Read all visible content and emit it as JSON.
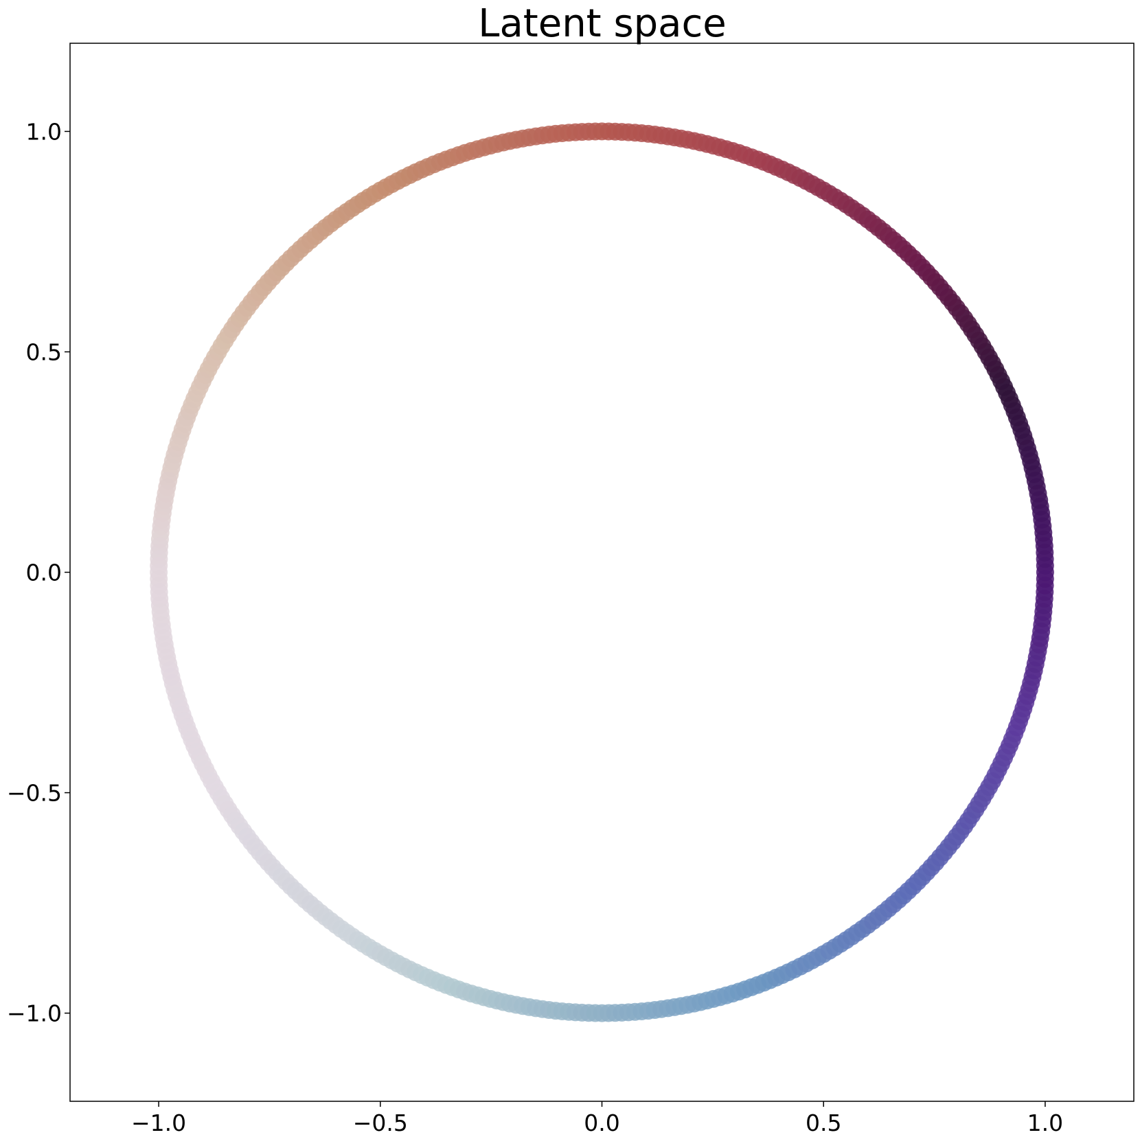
{
  "chart_data": {
    "type": "scatter",
    "title": "Latent space",
    "xlabel": "",
    "ylabel": "",
    "xlim": [
      -1.2,
      1.2
    ],
    "ylim": [
      -1.2,
      1.2
    ],
    "x_ticks": [
      -1.0,
      -0.5,
      0.0,
      0.5,
      1.0
    ],
    "y_ticks": [
      -1.0,
      -0.5,
      0.0,
      0.5,
      1.0
    ],
    "x_tick_labels": [
      "−1.0",
      "−0.5",
      "0.0",
      "0.5",
      "1.0"
    ],
    "y_tick_labels": [
      "1.0",
      "0.5",
      "0.0",
      "−0.5",
      "−1.0"
    ],
    "grid": false,
    "colormap": "twilight_shifted",
    "description_of_points": "points lie on the unit circle; color varies with angle",
    "color_stops": [
      {
        "angle_deg": 0,
        "color": "#4a1670"
      },
      {
        "angle_deg": 25,
        "color": "#2f1338"
      },
      {
        "angle_deg": 45,
        "color": "#6a1a4a"
      },
      {
        "angle_deg": 70,
        "color": "#a23f4f"
      },
      {
        "angle_deg": 90,
        "color": "#b4574f"
      },
      {
        "angle_deg": 120,
        "color": "#c48d6f"
      },
      {
        "angle_deg": 150,
        "color": "#d8bfae"
      },
      {
        "angle_deg": 180,
        "color": "#e2d6dc"
      },
      {
        "angle_deg": 210,
        "color": "#e2d9e2"
      },
      {
        "angle_deg": 235,
        "color": "#cdd3da"
      },
      {
        "angle_deg": 250,
        "color": "#b4cad1"
      },
      {
        "angle_deg": 270,
        "color": "#8fb0c6"
      },
      {
        "angle_deg": 290,
        "color": "#6d98c2"
      },
      {
        "angle_deg": 315,
        "color": "#5c6ab6"
      },
      {
        "angle_deg": 340,
        "color": "#5d3a9c"
      },
      {
        "angle_deg": 360,
        "color": "#4a1670"
      }
    ],
    "radius": 1.0,
    "n_points": 420
  }
}
